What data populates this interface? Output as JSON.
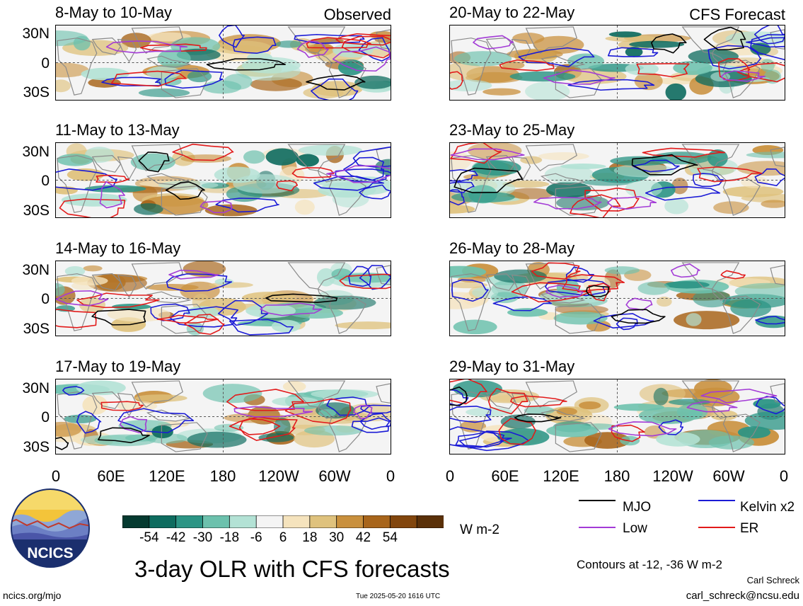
{
  "header": {
    "observed_label": "Observed",
    "forecast_label": "CFS Forecast"
  },
  "panels": [
    {
      "title": "8-May to 10-May",
      "column": "observed"
    },
    {
      "title": "11-May to 13-May",
      "column": "observed"
    },
    {
      "title": "14-May to 16-May",
      "column": "observed"
    },
    {
      "title": "17-May to 19-May",
      "column": "observed"
    },
    {
      "title": "20-May to 22-May",
      "column": "forecast"
    },
    {
      "title": "23-May to 25-May",
      "column": "forecast"
    },
    {
      "title": "26-May to 28-May",
      "column": "forecast"
    },
    {
      "title": "29-May to 31-May",
      "column": "forecast"
    }
  ],
  "axes": {
    "lat_ticks": [
      "30N",
      "0",
      "30S"
    ],
    "lon_ticks": [
      "0",
      "60E",
      "120E",
      "180",
      "120W",
      "60W",
      "0"
    ]
  },
  "colorbar": {
    "unit": "W m-2",
    "labels": [
      "-54",
      "-42",
      "-30",
      "-18",
      "-6",
      "6",
      "18",
      "30",
      "42",
      "54"
    ],
    "colors": [
      "#053a30",
      "#0e6c5f",
      "#2c9585",
      "#6cc1ad",
      "#b3e2d5",
      "#f4f4f4",
      "#f5e3bd",
      "#dfc27d",
      "#c9903d",
      "#a8651b",
      "#82460d",
      "#5a3008"
    ]
  },
  "legend": {
    "items": [
      {
        "label": "MJO",
        "color": "#000000"
      },
      {
        "label": "Kelvin x2",
        "color": "#1a1ad6"
      },
      {
        "label": "Low",
        "color": "#a33bd6"
      },
      {
        "label": "ER",
        "color": "#e21a1a"
      }
    ],
    "contour_note": "Contours at -12, -36 W m-2",
    "author": "Carl Schreck",
    "email": "carl_schreck@ncsu.edu"
  },
  "footer": {
    "main_title": "3-day OLR with CFS forecasts",
    "site": "ncics.org/mjo",
    "timestamp": "Tue 2025-05-20 1616 UTC"
  },
  "logo": {
    "text": "NCICS"
  }
}
